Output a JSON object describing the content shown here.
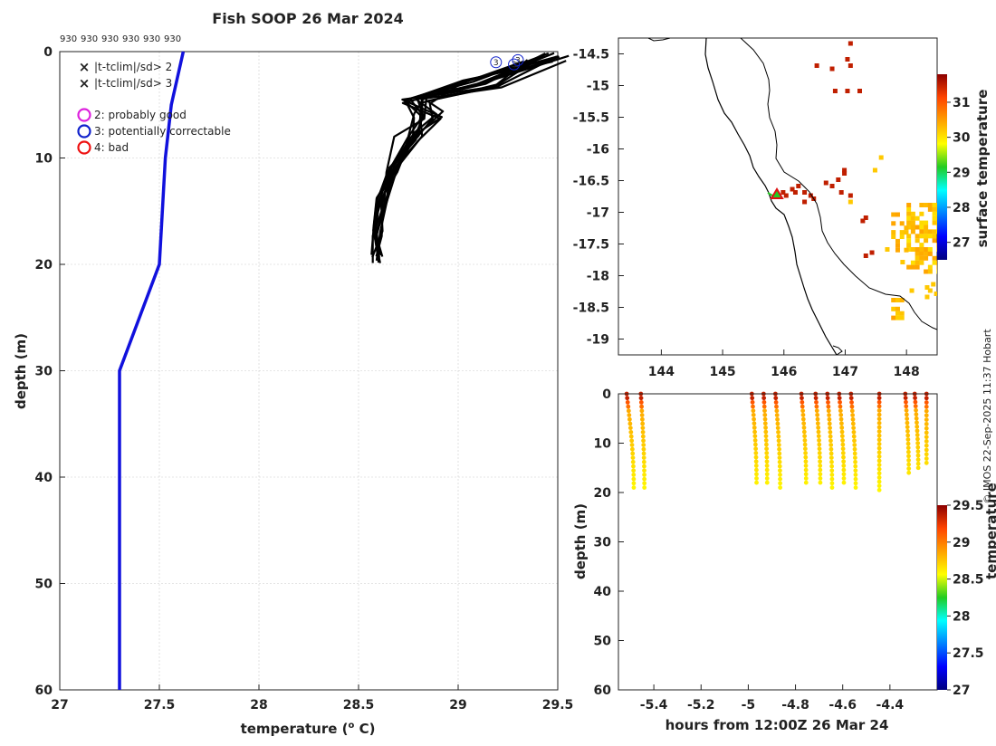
{
  "title": "Fish SOOP 26 Mar 2024",
  "credit": "© IMOS 22-Sep-2025 11:37 Hobart",
  "top_labels": [
    "930",
    "930",
    "930",
    "930",
    "930",
    "930"
  ],
  "legend": {
    "x_items": [
      {
        "label": "|t-tclim|/sd> 2",
        "color": "#22cc22"
      },
      {
        "label": "|t-tclim|/sd> 3",
        "color": "#dd1111"
      }
    ],
    "circle_items": [
      {
        "label": "2: probably good",
        "color": "#dd22dd"
      },
      {
        "label": "3: potentially correctable",
        "color": "#1122cc"
      },
      {
        "label": "4: bad",
        "color": "#ee1111"
      }
    ]
  },
  "chart_data": [
    {
      "type": "line",
      "panel": "profile",
      "xlabel": "temperature (o C)",
      "ylabel": "depth (m)",
      "xlim": [
        27,
        29.5
      ],
      "ylim": [
        60,
        0
      ],
      "xticks": [
        "27",
        "27.5",
        "28",
        "28.5",
        "29",
        "29.5"
      ],
      "yticks": [
        "0",
        "10",
        "20",
        "30",
        "40",
        "50",
        "60"
      ],
      "grid": true,
      "climatology": {
        "name": "climatology",
        "color": "#1111dd",
        "temperature": [
          27.62,
          27.56,
          27.53,
          27.5,
          27.3,
          27.3
        ],
        "depth": [
          0,
          5,
          10,
          20,
          30,
          60
        ]
      },
      "profiles": {
        "color": "#000000",
        "count": 13,
        "mean_temperature": [
          29.45,
          29.1,
          28.78,
          28.85,
          28.74,
          28.67,
          28.62,
          28.6,
          28.59
        ],
        "depth": [
          0.5,
          3.0,
          4.5,
          6.0,
          8.0,
          11.0,
          14.0,
          17.0,
          19.5
        ]
      },
      "flagged_points": {
        "temperature": [
          29.19,
          29.28,
          29.3
        ],
        "depth": [
          1.0,
          1.2,
          0.8
        ]
      }
    },
    {
      "type": "heatmap",
      "panel": "map",
      "xlim": [
        143.3,
        148.5
      ],
      "ylim": [
        -19.25,
        -14.25
      ],
      "xticks": [
        "144",
        "145",
        "146",
        "147",
        "148"
      ],
      "yticks": [
        "-14.5",
        "-15",
        "-15.5",
        "-16",
        "-16.5",
        "-17",
        "-17.5",
        "-18",
        "-18.5",
        "-19"
      ],
      "colorbar": {
        "label": "surface temperature",
        "range": [
          26.5,
          31.8
        ],
        "ticks": [
          "27",
          "28",
          "29",
          "30",
          "31"
        ]
      },
      "track_location": [
        145.85,
        -16.75
      ]
    },
    {
      "type": "scatter",
      "panel": "time-depth",
      "xlabel": "hours from 12:00Z 26 Mar 24",
      "ylabel": "depth (m)",
      "xlim": [
        -5.55,
        -4.2
      ],
      "ylim": [
        60,
        0
      ],
      "xticks": [
        "-5.4",
        "-5.2",
        "-5",
        "-4.8",
        "-4.6",
        "-4.4"
      ],
      "yticks": [
        "0",
        "10",
        "20",
        "30",
        "40",
        "50",
        "60"
      ],
      "colorbar": {
        "label": "temperature",
        "range": [
          27,
          29.5
        ],
        "ticks": [
          "27",
          "27.5",
          "28",
          "28.5",
          "29",
          "29.5"
        ]
      },
      "profiles": [
        {
          "t0": -5.515,
          "t1": -5.455,
          "max_depth": 19
        },
        {
          "t0": -5.455,
          "t1": -5.425,
          "max_depth": 19
        },
        {
          "t0": -4.985,
          "t1": -4.945,
          "max_depth": 18
        },
        {
          "t0": -4.935,
          "t1": -4.905,
          "max_depth": 18
        },
        {
          "t0": -4.885,
          "t1": -4.845,
          "max_depth": 19
        },
        {
          "t0": -4.775,
          "t1": -4.735,
          "max_depth": 18
        },
        {
          "t0": -4.715,
          "t1": -4.675,
          "max_depth": 18
        },
        {
          "t0": -4.665,
          "t1": -4.625,
          "max_depth": 19
        },
        {
          "t0": -4.615,
          "t1": -4.575,
          "max_depth": 18
        },
        {
          "t0": -4.565,
          "t1": -4.525,
          "max_depth": 19
        },
        {
          "t0": -4.445,
          "t1": -4.445,
          "max_depth": 19.5
        },
        {
          "t0": -4.335,
          "t1": -4.305,
          "max_depth": 16
        },
        {
          "t0": -4.295,
          "t1": -4.265,
          "max_depth": 15
        },
        {
          "t0": -4.245,
          "t1": -4.245,
          "max_depth": 14
        }
      ]
    }
  ]
}
